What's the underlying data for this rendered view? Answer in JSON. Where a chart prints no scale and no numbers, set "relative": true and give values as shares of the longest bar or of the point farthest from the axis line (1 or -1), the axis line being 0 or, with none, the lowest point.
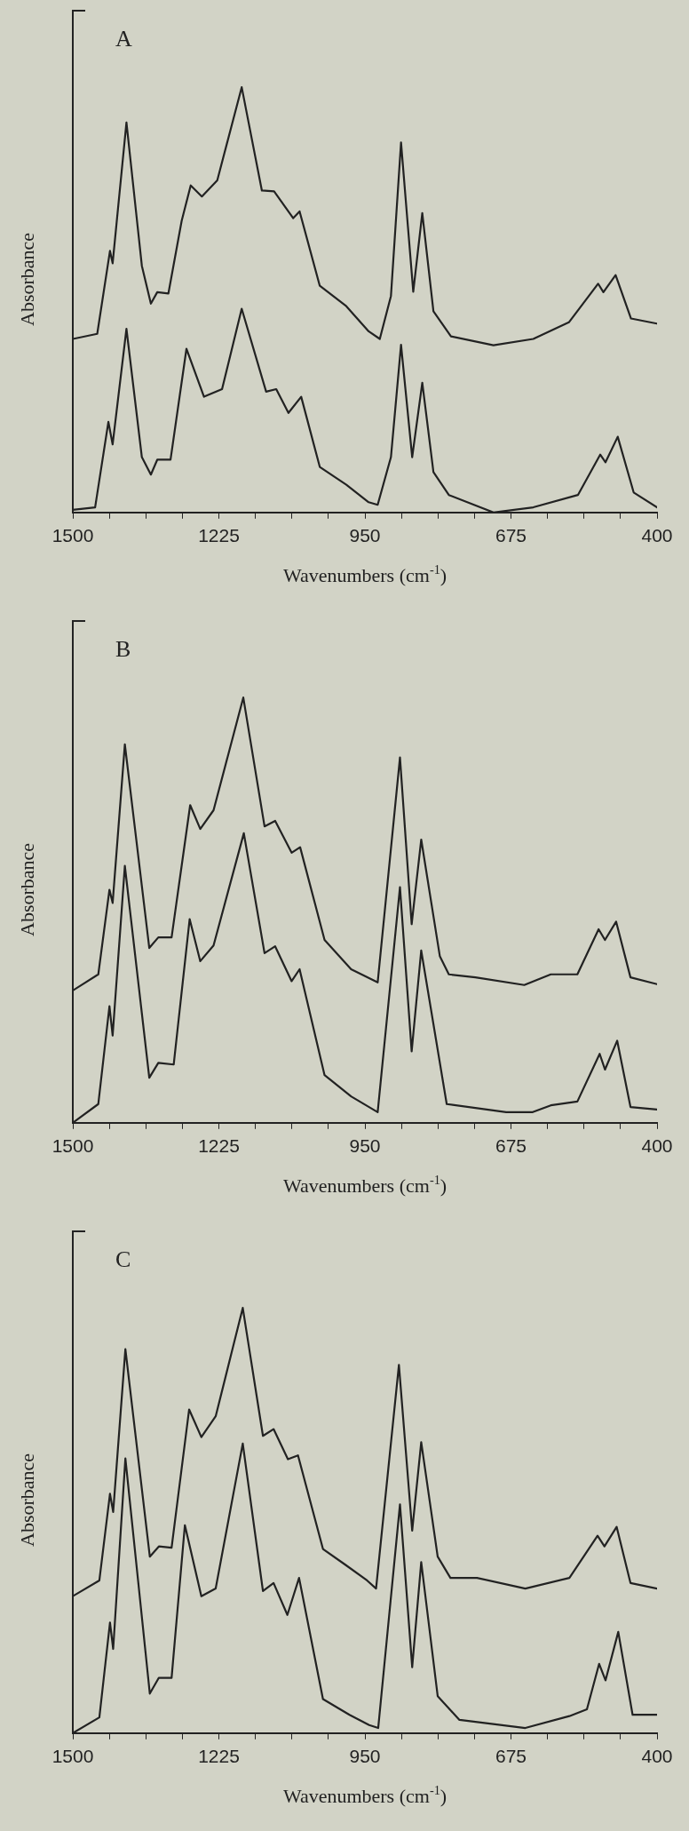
{
  "chart_data": [
    {
      "type": "line",
      "title": "A",
      "xlabel": "Wavenumbers (cm$^{-1}$)",
      "ylabel": "Absorbance",
      "relative": true,
      "xlim": [
        1500,
        400
      ],
      "xticks": [
        1500,
        {
          "value": 1431.25,
          "label": null
        },
        {
          "value": 1362.5,
          "label": null
        },
        {
          "value": 1293.75,
          "label": null
        },
        1225,
        {
          "value": 1156.25,
          "label": null
        },
        {
          "value": 1087.5,
          "label": null
        },
        {
          "value": 1018.75,
          "label": null
        },
        950,
        {
          "value": 881.25,
          "label": null
        },
        {
          "value": 812.5,
          "label": null
        },
        {
          "value": 743.75,
          "label": null
        },
        675,
        {
          "value": 606.25,
          "label": null
        },
        {
          "value": 537.5,
          "label": null
        },
        {
          "value": 468.75,
          "label": null
        },
        400
      ],
      "tick_labels": "x",
      "grid": false,
      "legend": false,
      "marker": "none",
      "line_style": "solid",
      "series": [
        {
          "color": "#222222",
          "x": [
            1500,
            1454,
            1430,
            1425,
            1399,
            1370,
            1353,
            1341,
            1320,
            1295,
            1278,
            1257,
            1228,
            1182,
            1144,
            1121,
            1085,
            1073,
            1035,
            985,
            943,
            922,
            901,
            882,
            859,
            842,
            821,
            788,
            708,
            633,
            566,
            511,
            501,
            478,
            449,
            400
          ],
          "values": [
            0.408,
            0.42,
            0.615,
            0.586,
            0.917,
            0.58,
            0.491,
            0.518,
            0.515,
            0.686,
            0.769,
            0.743,
            0.781,
            1.0,
            0.757,
            0.755,
            0.692,
            0.708,
            0.533,
            0.485,
            0.426,
            0.408,
            0.509,
            0.87,
            0.519,
            0.704,
            0.473,
            0.414,
            0.393,
            0.408,
            0.447,
            0.538,
            0.518,
            0.558,
            0.456,
            0.444
          ]
        },
        {
          "color": "#222222",
          "x": [
            1500,
            1458,
            1433,
            1425,
            1399,
            1370,
            1353,
            1341,
            1316,
            1286,
            1253,
            1219,
            1182,
            1136,
            1117,
            1094,
            1070,
            1035,
            985,
            943,
            926,
            901,
            882,
            861,
            842,
            821,
            792,
            708,
            633,
            549,
            507,
            497,
            474,
            444,
            400
          ],
          "values": [
            0.006,
            0.012,
            0.213,
            0.16,
            0.432,
            0.13,
            0.089,
            0.124,
            0.124,
            0.385,
            0.272,
            0.29,
            0.479,
            0.284,
            0.29,
            0.234,
            0.272,
            0.107,
            0.065,
            0.024,
            0.018,
            0.13,
            0.394,
            0.13,
            0.305,
            0.095,
            0.041,
            0.0,
            0.012,
            0.041,
            0.136,
            0.118,
            0.178,
            0.047,
            0.012
          ]
        }
      ]
    },
    {
      "type": "line",
      "title": "B",
      "xlabel": "Wavenumbers (cm$^{-1}$)",
      "ylabel": "Absorbance",
      "relative": true,
      "xlim": [
        1500,
        400
      ],
      "xticks": [
        1500,
        {
          "value": 1431.25,
          "label": null
        },
        {
          "value": 1362.5,
          "label": null
        },
        {
          "value": 1293.75,
          "label": null
        },
        1225,
        {
          "value": 1156.25,
          "label": null
        },
        {
          "value": 1087.5,
          "label": null
        },
        {
          "value": 1018.75,
          "label": null
        },
        950,
        {
          "value": 881.25,
          "label": null
        },
        {
          "value": 812.5,
          "label": null
        },
        {
          "value": 743.75,
          "label": null
        },
        675,
        {
          "value": 606.25,
          "label": null
        },
        {
          "value": 537.5,
          "label": null
        },
        {
          "value": 468.75,
          "label": null
        },
        400
      ],
      "tick_labels": "x",
      "grid": false,
      "legend": false,
      "marker": "none",
      "line_style": "solid",
      "series": [
        {
          "color": "#222222",
          "x": [
            1500,
            1452,
            1431,
            1425,
            1402,
            1356,
            1339,
            1314,
            1279,
            1260,
            1235,
            1179,
            1139,
            1119,
            1088,
            1072,
            1026,
            976,
            926,
            884,
            862,
            844,
            809,
            792,
            742,
            650,
            600,
            550,
            510,
            498,
            477,
            450,
            400
          ],
          "values": [
            0.311,
            0.349,
            0.548,
            0.517,
            0.89,
            0.411,
            0.436,
            0.436,
            0.747,
            0.691,
            0.735,
            1.0,
            0.697,
            0.71,
            0.635,
            0.648,
            0.43,
            0.361,
            0.33,
            0.859,
            0.467,
            0.666,
            0.392,
            0.349,
            0.342,
            0.324,
            0.349,
            0.349,
            0.455,
            0.43,
            0.473,
            0.342,
            0.326
          ]
        },
        {
          "color": "#222222",
          "x": [
            1500,
            1452,
            1431,
            1425,
            1402,
            1356,
            1339,
            1310,
            1280,
            1260,
            1235,
            1178,
            1139,
            1119,
            1088,
            1073,
            1026,
            976,
            926,
            884,
            862,
            844,
            796,
            684,
            634,
            600,
            550,
            508,
            498,
            475,
            450,
            400
          ],
          "values": [
            0.0,
            0.044,
            0.274,
            0.205,
            0.604,
            0.106,
            0.141,
            0.137,
            0.479,
            0.38,
            0.417,
            0.681,
            0.399,
            0.415,
            0.333,
            0.361,
            0.112,
            0.062,
            0.025,
            0.554,
            0.168,
            0.405,
            0.044,
            0.025,
            0.025,
            0.041,
            0.05,
            0.162,
            0.125,
            0.193,
            0.037,
            0.031
          ]
        }
      ]
    },
    {
      "type": "line",
      "title": "C",
      "xlabel": "Wavenumbers (cm$^{-1}$)",
      "ylabel": "Absorbance",
      "relative": true,
      "xlim": [
        1500,
        400
      ],
      "xticks": [
        1500,
        {
          "value": 1431.25,
          "label": null
        },
        {
          "value": 1362.5,
          "label": null
        },
        {
          "value": 1293.75,
          "label": null
        },
        1225,
        {
          "value": 1156.25,
          "label": null
        },
        {
          "value": 1087.5,
          "label": null
        },
        {
          "value": 1018.75,
          "label": null
        },
        950,
        {
          "value": 881.25,
          "label": null
        },
        {
          "value": 812.5,
          "label": null
        },
        {
          "value": 743.75,
          "label": null
        },
        675,
        {
          "value": 606.25,
          "label": null
        },
        {
          "value": 537.5,
          "label": null
        },
        {
          "value": 468.75,
          "label": null
        },
        400
      ],
      "tick_labels": "x",
      "grid": false,
      "legend": false,
      "marker": "none",
      "line_style": "solid",
      "series": [
        {
          "color": "#222222",
          "x": [
            1500,
            1450,
            1430,
            1424,
            1401,
            1355,
            1338,
            1314,
            1281,
            1258,
            1231,
            1180,
            1142,
            1122,
            1095,
            1076,
            1029,
            987,
            946,
            929,
            886,
            861,
            844,
            813,
            789,
            739,
            648,
            565,
            512,
            499,
            476,
            450,
            400
          ],
          "values": [
            0.322,
            0.359,
            0.563,
            0.52,
            0.903,
            0.415,
            0.439,
            0.436,
            0.761,
            0.696,
            0.745,
            1.0,
            0.699,
            0.715,
            0.644,
            0.653,
            0.433,
            0.396,
            0.359,
            0.34,
            0.866,
            0.476,
            0.684,
            0.415,
            0.365,
            0.365,
            0.34,
            0.365,
            0.464,
            0.439,
            0.485,
            0.353,
            0.34
          ]
        },
        {
          "color": "#222222",
          "x": [
            1500,
            1450,
            1430,
            1424,
            1401,
            1355,
            1338,
            1314,
            1289,
            1258,
            1231,
            1180,
            1142,
            1122,
            1096,
            1074,
            1029,
            979,
            942,
            925,
            884,
            861,
            844,
            813,
            772,
            648,
            565,
            532,
            509,
            497,
            473,
            446,
            400
          ],
          "values": [
            0.0,
            0.037,
            0.26,
            0.198,
            0.646,
            0.093,
            0.13,
            0.13,
            0.489,
            0.322,
            0.34,
            0.681,
            0.334,
            0.353,
            0.278,
            0.365,
            0.08,
            0.043,
            0.019,
            0.012,
            0.538,
            0.155,
            0.402,
            0.087,
            0.031,
            0.012,
            0.04,
            0.056,
            0.163,
            0.124,
            0.238,
            0.043,
            0.043
          ]
        }
      ]
    }
  ]
}
